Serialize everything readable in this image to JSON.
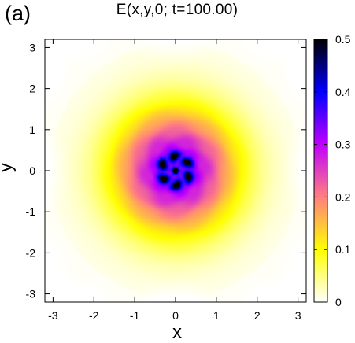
{
  "panel_label": "(a)",
  "chart_data": {
    "type": "heatmap",
    "title": "E(x,y,0;  t=100.00)",
    "xlabel": "x",
    "ylabel": "y",
    "xlim": [
      -3.2,
      3.2
    ],
    "ylim": [
      -3.2,
      3.2
    ],
    "x_ticks": [
      -3,
      -2,
      -1,
      0,
      1,
      2,
      3
    ],
    "y_ticks": [
      -3,
      -2,
      -1,
      0,
      1,
      2,
      3
    ],
    "colorbar": {
      "range": [
        0,
        0.5
      ],
      "ticks": [
        0,
        0.1,
        0.2,
        0.3,
        0.4,
        0.5
      ],
      "colormap": [
        "#ffffff",
        "#ffff00",
        "#ff8080",
        "#c000ff",
        "#0000ff",
        "#000000"
      ]
    },
    "grid": false,
    "legend": "none",
    "field": {
      "peak_center": [
        0,
        0
      ],
      "peak_value": 0.45,
      "ring_peak_value": 0.42,
      "ring_radius": 0.35,
      "spiral_arms": 6,
      "corner_value": 0.01,
      "description_free": true
    }
  }
}
